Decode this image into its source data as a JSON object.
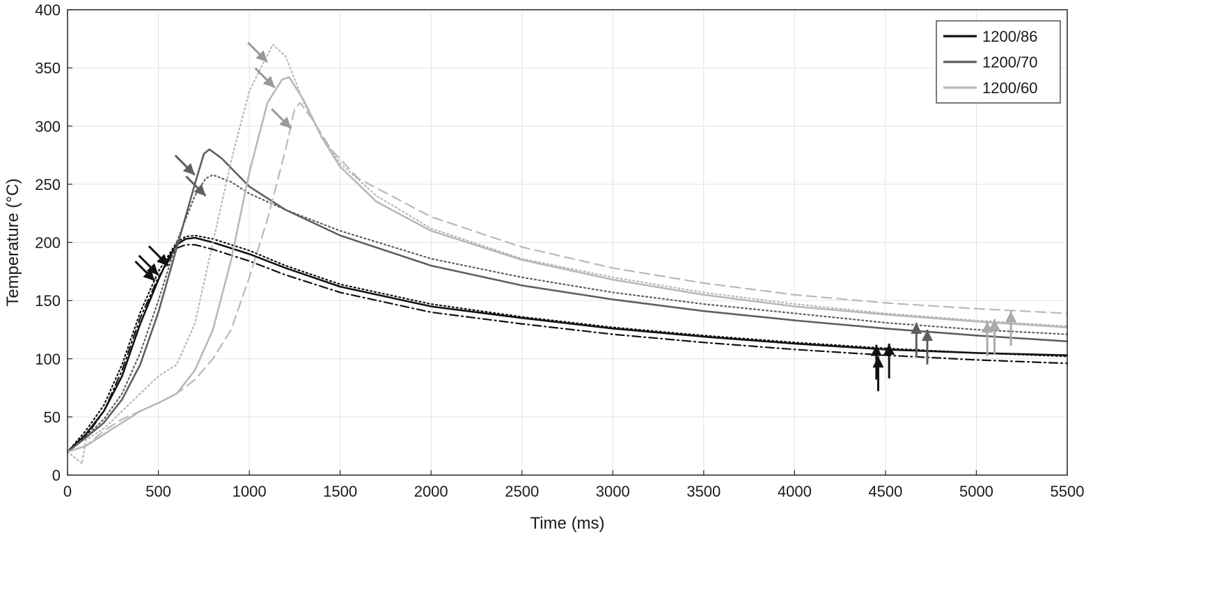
{
  "chart_data": {
    "type": "line",
    "title": "",
    "xlabel": "Time (ms)",
    "ylabel": "Temperature (°C)",
    "xlim": [
      0,
      5500
    ],
    "ylim": [
      0,
      400
    ],
    "xticks": [
      0,
      500,
      1000,
      1500,
      2000,
      2500,
      3000,
      3500,
      4000,
      4500,
      5000,
      5500
    ],
    "yticks": [
      0,
      50,
      100,
      150,
      200,
      250,
      300,
      350,
      400
    ],
    "grid": true,
    "legend_position": "top-right",
    "legend": [
      {
        "label": "1200/86",
        "color": "#111111"
      },
      {
        "label": "1200/70",
        "color": "#5e5e5e"
      },
      {
        "label": "1200/60",
        "color": "#b8b8b8"
      }
    ],
    "series": [
      {
        "group": "1200/86",
        "style": "solid",
        "color": "#111111",
        "points": [
          [
            0,
            20
          ],
          [
            100,
            35
          ],
          [
            200,
            55
          ],
          [
            300,
            85
          ],
          [
            400,
            130
          ],
          [
            500,
            168
          ],
          [
            550,
            185
          ],
          [
            600,
            198
          ],
          [
            650,
            203
          ],
          [
            700,
            204
          ],
          [
            800,
            200
          ],
          [
            1000,
            190
          ],
          [
            1200,
            178
          ],
          [
            1500,
            162
          ],
          [
            2000,
            145
          ],
          [
            2500,
            135
          ],
          [
            3000,
            126
          ],
          [
            3500,
            119
          ],
          [
            4000,
            113
          ],
          [
            4500,
            108
          ],
          [
            5000,
            105
          ],
          [
            5500,
            103
          ]
        ]
      },
      {
        "group": "1200/86",
        "style": "dashdot",
        "color": "#111111",
        "points": [
          [
            0,
            20
          ],
          [
            100,
            33
          ],
          [
            200,
            55
          ],
          [
            300,
            90
          ],
          [
            400,
            135
          ],
          [
            500,
            170
          ],
          [
            600,
            195
          ],
          [
            650,
            198
          ],
          [
            700,
            198
          ],
          [
            800,
            194
          ],
          [
            1000,
            184
          ],
          [
            1200,
            172
          ],
          [
            1500,
            157
          ],
          [
            2000,
            140
          ],
          [
            2500,
            130
          ],
          [
            3000,
            121
          ],
          [
            3500,
            114
          ],
          [
            4000,
            108
          ],
          [
            4500,
            103
          ],
          [
            5000,
            99
          ],
          [
            5500,
            96
          ]
        ]
      },
      {
        "group": "1200/86",
        "style": "dotted",
        "color": "#111111",
        "points": [
          [
            0,
            20
          ],
          [
            100,
            38
          ],
          [
            200,
            60
          ],
          [
            300,
            95
          ],
          [
            400,
            140
          ],
          [
            500,
            175
          ],
          [
            600,
            200
          ],
          [
            650,
            205
          ],
          [
            700,
            206
          ],
          [
            800,
            203
          ],
          [
            1000,
            193
          ],
          [
            1200,
            180
          ],
          [
            1500,
            164
          ],
          [
            2000,
            147
          ],
          [
            2500,
            136
          ],
          [
            3000,
            127
          ],
          [
            3500,
            120
          ],
          [
            4000,
            114
          ],
          [
            4500,
            109
          ],
          [
            5000,
            105
          ],
          [
            5500,
            102
          ]
        ]
      },
      {
        "group": "1200/70",
        "style": "solid",
        "color": "#5e5e5e",
        "points": [
          [
            0,
            20
          ],
          [
            100,
            32
          ],
          [
            200,
            45
          ],
          [
            300,
            65
          ],
          [
            400,
            95
          ],
          [
            500,
            140
          ],
          [
            600,
            195
          ],
          [
            700,
            250
          ],
          [
            750,
            276
          ],
          [
            780,
            280
          ],
          [
            850,
            272
          ],
          [
            1000,
            248
          ],
          [
            1200,
            228
          ],
          [
            1500,
            206
          ],
          [
            2000,
            180
          ],
          [
            2500,
            163
          ],
          [
            3000,
            151
          ],
          [
            3500,
            141
          ],
          [
            4000,
            133
          ],
          [
            4500,
            126
          ],
          [
            5000,
            120
          ],
          [
            5500,
            115
          ]
        ]
      },
      {
        "group": "1200/70",
        "style": "dotted",
        "color": "#5e5e5e",
        "points": [
          [
            0,
            20
          ],
          [
            100,
            33
          ],
          [
            200,
            48
          ],
          [
            300,
            70
          ],
          [
            400,
            105
          ],
          [
            500,
            150
          ],
          [
            600,
            200
          ],
          [
            700,
            240
          ],
          [
            760,
            255
          ],
          [
            800,
            258
          ],
          [
            900,
            252
          ],
          [
            1000,
            242
          ],
          [
            1200,
            228
          ],
          [
            1500,
            210
          ],
          [
            2000,
            186
          ],
          [
            2500,
            170
          ],
          [
            3000,
            157
          ],
          [
            3500,
            147
          ],
          [
            4000,
            139
          ],
          [
            4500,
            131
          ],
          [
            5000,
            125
          ],
          [
            5500,
            121
          ]
        ]
      },
      {
        "group": "1200/60",
        "style": "solid",
        "color": "#b8b8b8",
        "points": [
          [
            0,
            20
          ],
          [
            100,
            25
          ],
          [
            200,
            35
          ],
          [
            300,
            45
          ],
          [
            400,
            55
          ],
          [
            500,
            62
          ],
          [
            600,
            70
          ],
          [
            700,
            90
          ],
          [
            800,
            125
          ],
          [
            900,
            185
          ],
          [
            1000,
            260
          ],
          [
            1100,
            320
          ],
          [
            1180,
            340
          ],
          [
            1220,
            342
          ],
          [
            1300,
            322
          ],
          [
            1400,
            290
          ],
          [
            1500,
            265
          ],
          [
            1700,
            235
          ],
          [
            2000,
            210
          ],
          [
            2500,
            185
          ],
          [
            3000,
            168
          ],
          [
            3500,
            155
          ],
          [
            4000,
            145
          ],
          [
            4500,
            138
          ],
          [
            5000,
            132
          ],
          [
            5500,
            127
          ]
        ]
      },
      {
        "group": "1200/60",
        "style": "dashed",
        "color": "#b8b8b8",
        "points": [
          [
            0,
            20
          ],
          [
            100,
            25
          ],
          [
            200,
            38
          ],
          [
            300,
            48
          ],
          [
            400,
            55
          ],
          [
            500,
            62
          ],
          [
            600,
            70
          ],
          [
            700,
            82
          ],
          [
            800,
            100
          ],
          [
            900,
            125
          ],
          [
            1000,
            170
          ],
          [
            1100,
            220
          ],
          [
            1200,
            280
          ],
          [
            1250,
            315
          ],
          [
            1280,
            320
          ],
          [
            1350,
            305
          ],
          [
            1450,
            280
          ],
          [
            1600,
            255
          ],
          [
            2000,
            222
          ],
          [
            2500,
            196
          ],
          [
            3000,
            178
          ],
          [
            3500,
            165
          ],
          [
            4000,
            155
          ],
          [
            4500,
            148
          ],
          [
            5000,
            143
          ],
          [
            5500,
            139
          ]
        ]
      },
      {
        "group": "1200/60",
        "style": "dotted",
        "color": "#b8b8b8",
        "points": [
          [
            0,
            20
          ],
          [
            80,
            10
          ],
          [
            100,
            30
          ],
          [
            200,
            40
          ],
          [
            300,
            55
          ],
          [
            400,
            70
          ],
          [
            500,
            85
          ],
          [
            600,
            95
          ],
          [
            700,
            130
          ],
          [
            800,
            200
          ],
          [
            900,
            270
          ],
          [
            1000,
            330
          ],
          [
            1080,
            355
          ],
          [
            1130,
            370
          ],
          [
            1200,
            360
          ],
          [
            1300,
            320
          ],
          [
            1400,
            290
          ],
          [
            1500,
            268
          ],
          [
            1700,
            240
          ],
          [
            2000,
            212
          ],
          [
            2500,
            186
          ],
          [
            3000,
            170
          ],
          [
            3500,
            157
          ],
          [
            4000,
            147
          ],
          [
            4500,
            139
          ],
          [
            5000,
            133
          ],
          [
            5500,
            128
          ]
        ]
      }
    ],
    "annotations": [
      {
        "kind": "arrow-down",
        "color": "#111111",
        "x": 480,
        "y": 167
      },
      {
        "kind": "arrow-down",
        "color": "#111111",
        "x": 500,
        "y": 172
      },
      {
        "kind": "arrow-down",
        "color": "#111111",
        "x": 555,
        "y": 180
      },
      {
        "kind": "arrow-down",
        "color": "#5e5e5e",
        "x": 700,
        "y": 258
      },
      {
        "kind": "arrow-down",
        "color": "#5e5e5e",
        "x": 760,
        "y": 240
      },
      {
        "kind": "arrow-down",
        "color": "#999999",
        "x": 1100,
        "y": 355
      },
      {
        "kind": "arrow-down",
        "color": "#999999",
        "x": 1140,
        "y": 333
      },
      {
        "kind": "arrow-down",
        "color": "#999999",
        "x": 1230,
        "y": 298
      },
      {
        "kind": "arrow-up",
        "color": "#111111",
        "x": 4450,
        "y": 112
      },
      {
        "kind": "arrow-up",
        "color": "#111111",
        "x": 4460,
        "y": 102
      },
      {
        "kind": "arrow-up",
        "color": "#111111",
        "x": 4520,
        "y": 113
      },
      {
        "kind": "arrow-up",
        "color": "#5e5e5e",
        "x": 4670,
        "y": 131
      },
      {
        "kind": "arrow-up",
        "color": "#5e5e5e",
        "x": 4730,
        "y": 125
      },
      {
        "kind": "arrow-up",
        "color": "#aaaaaa",
        "x": 5060,
        "y": 132
      },
      {
        "kind": "arrow-up",
        "color": "#aaaaaa",
        "x": 5100,
        "y": 134
      },
      {
        "kind": "arrow-up",
        "color": "#aaaaaa",
        "x": 5190,
        "y": 141
      }
    ]
  }
}
